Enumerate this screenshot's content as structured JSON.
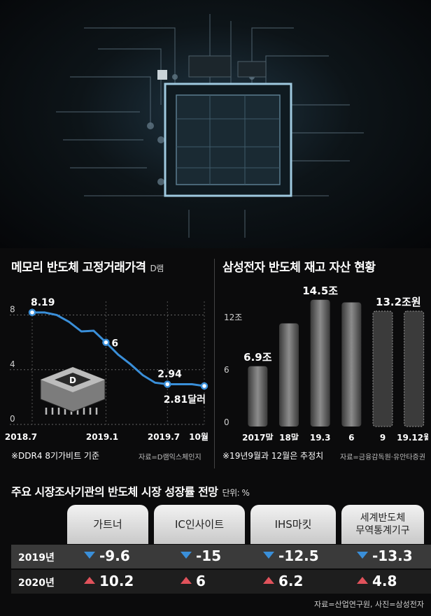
{
  "chart_data": [
    {
      "type": "line",
      "title": "메모리 반도체 고정거래가격",
      "subtitle": "D램",
      "x_tick_labels": [
        "2018.7",
        "2019.1",
        "2019.7",
        "10월"
      ],
      "y_tick_labels": [
        "0",
        "4",
        "8"
      ],
      "ylim": [
        0,
        9
      ],
      "points": [
        8.19,
        8.19,
        8.0,
        7.5,
        6.8,
        6.85,
        6.0,
        5.1,
        4.4,
        3.6,
        3.05,
        2.94,
        2.94,
        2.94,
        2.81
      ],
      "labels": {
        "start": "8.19",
        "mid": "6",
        "recent": "2.94",
        "end": "2.81달러"
      },
      "note": "※DDR4 8기가비트 기준",
      "source": "자료=D램익스체인지",
      "line_color": "#3a8fd9",
      "chip_label": "D"
    },
    {
      "type": "bar",
      "title": "삼성전자 반도체 재고 자산 현황",
      "categories": [
        "2017말",
        "18말",
        "19.3",
        "6",
        "9",
        "19.12월"
      ],
      "values": [
        6.9,
        11.8,
        14.5,
        14.2,
        13.2,
        13.2
      ],
      "estimated": [
        false,
        false,
        false,
        false,
        true,
        true
      ],
      "value_labels": [
        "6.9조",
        "",
        "14.5조",
        "",
        "",
        "13.2조원"
      ],
      "y_tick_labels": [
        "0",
        "6",
        "12조"
      ],
      "ylim": [
        0,
        16
      ],
      "note": "※19년9월과 12월은 추정치",
      "source": "자료=금융감독원·유안타증권"
    },
    {
      "type": "table",
      "title": "주요 시장조사기관의 반도체 시장 성장률 전망",
      "unit": "단위: %",
      "columns": [
        "가트너",
        "IC인사이트",
        "IHS마킷",
        "세계반도체\n무역통계기구"
      ],
      "rows": [
        {
          "label": "2019년",
          "values": [
            "-9.6",
            "-15",
            "-12.5",
            "-13.3"
          ],
          "direction": "down"
        },
        {
          "label": "2020년",
          "values": [
            "10.2",
            "6",
            "6.2",
            "4.8"
          ],
          "direction": "up"
        }
      ],
      "colors": {
        "down": "#3a8fd9",
        "up": "#e0525b"
      }
    }
  ],
  "credit": "자료=산업연구원, 사진=삼성전자"
}
